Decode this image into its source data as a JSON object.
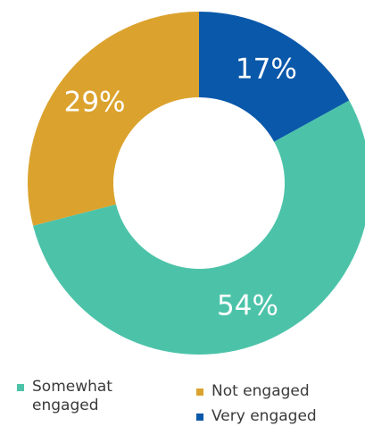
{
  "chart_data": {
    "type": "pie",
    "variant": "donut",
    "title": "",
    "slices": [
      {
        "label": "Very engaged",
        "value": 17,
        "display": "17%",
        "color": "#0a58aa"
      },
      {
        "label": "Somewhat engaged",
        "value": 54,
        "display": "54%",
        "color": "#4cc3a9"
      },
      {
        "label": "Not engaged",
        "value": 29,
        "display": "29%",
        "color": "#dba32e"
      }
    ],
    "legend": {
      "placement": "bottom",
      "items": [
        {
          "label": "Somewhat engaged",
          "color": "#4cc3a9"
        },
        {
          "label": "Not engaged",
          "color": "#dba32e"
        },
        {
          "label": "Very engaged",
          "color": "#0a58aa"
        }
      ]
    }
  }
}
